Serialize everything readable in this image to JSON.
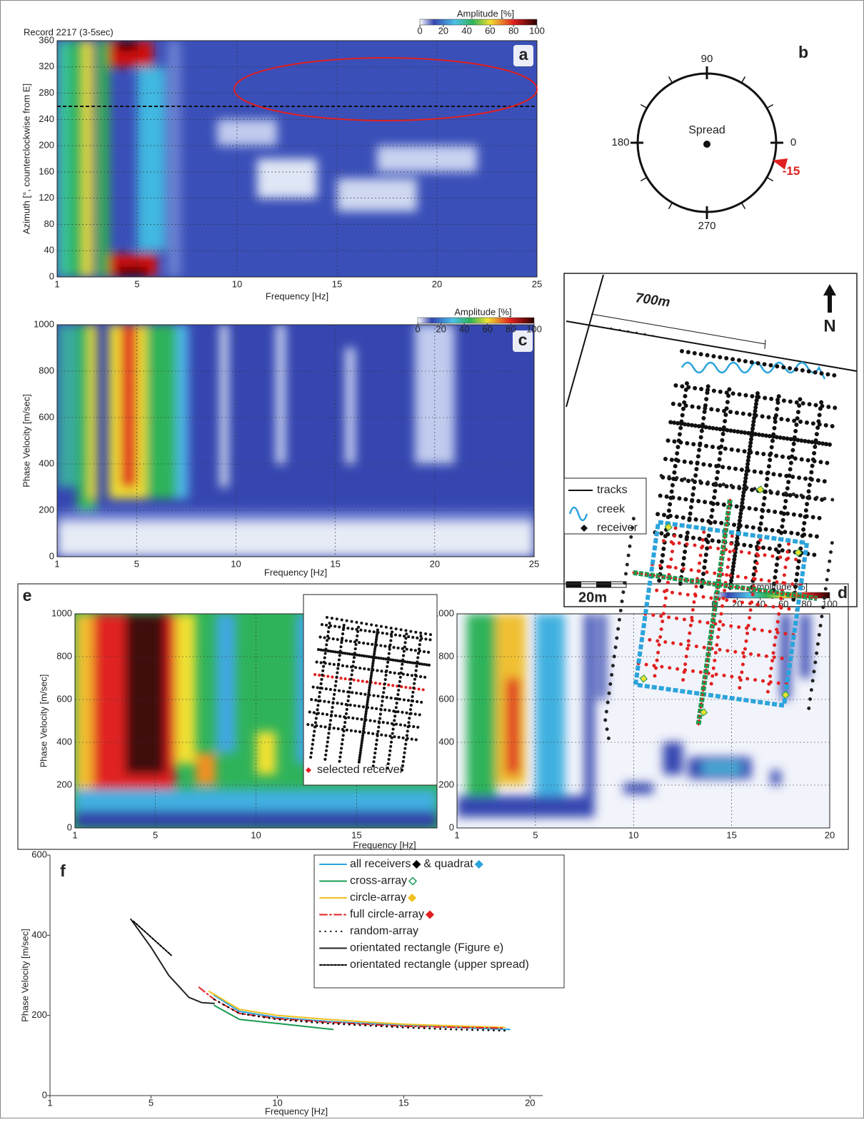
{
  "chart_data": [
    {
      "type": "heatmap",
      "panel_label": "a",
      "title": "Record 2217 (3-5sec)",
      "x_label": "Frequency [Hz]",
      "y_label": "Azimuth [°, counterclockwise from E]",
      "xlim": [
        1,
        25
      ],
      "xticks": [
        1,
        5,
        10,
        15,
        20,
        25
      ],
      "ylim": [
        0,
        360
      ],
      "yticks": [
        0,
        40,
        80,
        120,
        160,
        200,
        240,
        280,
        320,
        360
      ],
      "grid": true,
      "reference_line": 260,
      "colorbar": {
        "label": "Amplitude [%]",
        "lim": [
          0,
          100
        ],
        "ticks": [
          0,
          20,
          40,
          60,
          80,
          100
        ]
      }
    },
    {
      "type": "heatmap",
      "panel_label": "c",
      "x_label": "Frequency [Hz]",
      "y_label": "Phase Velocity [m/sec]",
      "xlim": [
        1,
        25
      ],
      "xticks": [
        1,
        5,
        10,
        15,
        20,
        25
      ],
      "ylim": [
        0,
        1000
      ],
      "yticks": [
        0,
        200,
        400,
        600,
        800,
        1000
      ],
      "grid": true,
      "colorbar": {
        "label": "Amplitude [%]",
        "lim": [
          0,
          100
        ],
        "ticks": [
          0,
          20,
          40,
          60,
          80,
          100
        ]
      }
    },
    {
      "type": "heatmap",
      "panel_label": "e",
      "x_label": "Frequency [Hz]",
      "y_label": "Phase Velocity [m/sec]",
      "xlim": [
        1,
        19
      ],
      "xticks": [
        1,
        5,
        10,
        15
      ],
      "ylim": [
        0,
        1000
      ],
      "yticks": [
        0,
        200,
        400,
        600,
        800,
        1000
      ],
      "grid": true
    },
    {
      "type": "heatmap",
      "xlim": [
        1,
        20
      ],
      "xticks": [
        1,
        5,
        10,
        15,
        20
      ],
      "ylim": [
        0,
        1000
      ],
      "yticks": [
        0,
        200,
        400,
        600,
        800,
        1000
      ],
      "grid": true,
      "colorbar": {
        "label": "Amplitude [%]",
        "lim": [
          0,
          100
        ],
        "ticks": [
          0,
          20,
          40,
          60,
          80,
          100
        ]
      }
    },
    {
      "type": "line",
      "panel_label": "f",
      "x_label": "Frequency [Hz]",
      "y_label": "Phase Velocity [m/sec]",
      "xlim": [
        1,
        20.5
      ],
      "xticks": [
        1,
        5,
        10,
        15,
        20
      ],
      "ylim": [
        0,
        600
      ],
      "yticks": [
        0,
        200,
        400,
        600
      ],
      "grid": false,
      "series": [
        {
          "name": "all receivers",
          "legend_marker": "#000000",
          "name_suffix": "& quadrat",
          "suffix_marker": "#2ba4dc",
          "color": "#2ba4dc",
          "style": "solid",
          "x": [
            7.5,
            8.5,
            10,
            12,
            15,
            17,
            19.2
          ],
          "values": [
            250,
            210,
            195,
            185,
            175,
            170,
            165
          ]
        },
        {
          "name": "cross-array",
          "legend_marker": "#1a9a50",
          "color": "#1a9a50",
          "style": "solid",
          "x": [
            7.5,
            8.5,
            10,
            12.2
          ],
          "values": [
            225,
            190,
            180,
            165
          ]
        },
        {
          "name": "circle-array",
          "legend_marker": "#f0c020",
          "color": "#f0c020",
          "style": "solid",
          "x": [
            7.3,
            8.5,
            10,
            12,
            15,
            19
          ],
          "values": [
            260,
            215,
            200,
            190,
            178,
            170
          ]
        },
        {
          "name": "full circle-array",
          "legend_marker": "#e02020",
          "color": "#e02020",
          "style": "dashdot",
          "x": [
            6.9,
            7.5,
            8.5,
            10,
            12,
            15,
            19
          ],
          "values": [
            270,
            240,
            205,
            192,
            183,
            173,
            168
          ]
        },
        {
          "name": "random-array",
          "color": "#000000",
          "style": "dotted",
          "x": [
            7.5,
            8.5,
            10,
            12,
            15,
            17,
            19
          ],
          "values": [
            240,
            205,
            190,
            180,
            170,
            165,
            162
          ]
        },
        {
          "name": "orientated rectangle (Figure e)",
          "color": "#222222",
          "style": "solid",
          "x": [
            4.2,
            5,
            5.7,
            6.5,
            7,
            7.5
          ],
          "values": [
            440,
            370,
            300,
            245,
            232,
            230
          ]
        },
        {
          "name": "orientated rectangle (upper spread)",
          "color": "#000000",
          "style": "dashed",
          "x": [
            4.3,
            5.8
          ],
          "values": [
            435,
            350
          ]
        }
      ]
    }
  ],
  "diagrams": {
    "b": {
      "label": "b",
      "center_label": "Spread",
      "directions": [
        90,
        180,
        0,
        270
      ],
      "azimuth": -15
    },
    "d": {
      "label": "d",
      "distance_label": "700m",
      "scale_label": "20m",
      "north": "N",
      "legend": [
        "tracks",
        "creek",
        "receiver"
      ]
    },
    "e_inset": {
      "legend": "selected receiver"
    }
  }
}
